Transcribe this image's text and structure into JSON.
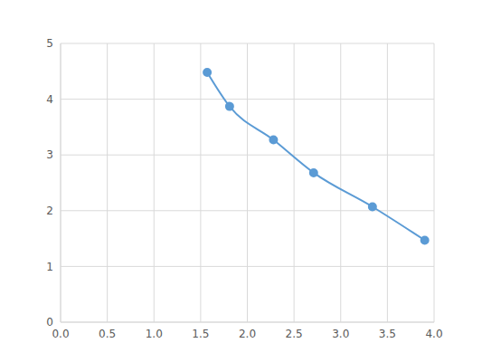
{
  "chart_data": {
    "type": "line",
    "x": [
      1.57,
      1.81,
      2.28,
      2.71,
      3.34,
      3.9
    ],
    "values": [
      4.48,
      3.87,
      3.27,
      2.68,
      2.07,
      1.47
    ],
    "color": "#5b9bd5",
    "marker": "circle",
    "line_style": "solid",
    "xlim": [
      0,
      4
    ],
    "xticks": [
      {
        "value": 0,
        "label": "0.0"
      },
      {
        "value": 0.5,
        "label": "0.5"
      },
      {
        "value": 1,
        "label": "1.0"
      },
      {
        "value": 1.5,
        "label": "1.5"
      },
      {
        "value": 2,
        "label": "2.0"
      },
      {
        "value": 2.5,
        "label": "2.5"
      },
      {
        "value": 3,
        "label": "3.0"
      },
      {
        "value": 3.5,
        "label": "3.5"
      },
      {
        "value": 4,
        "label": "4.0"
      }
    ],
    "ylim": [
      0,
      5
    ],
    "yticks": [
      0,
      1,
      2,
      3,
      4,
      5
    ],
    "grid": true
  }
}
